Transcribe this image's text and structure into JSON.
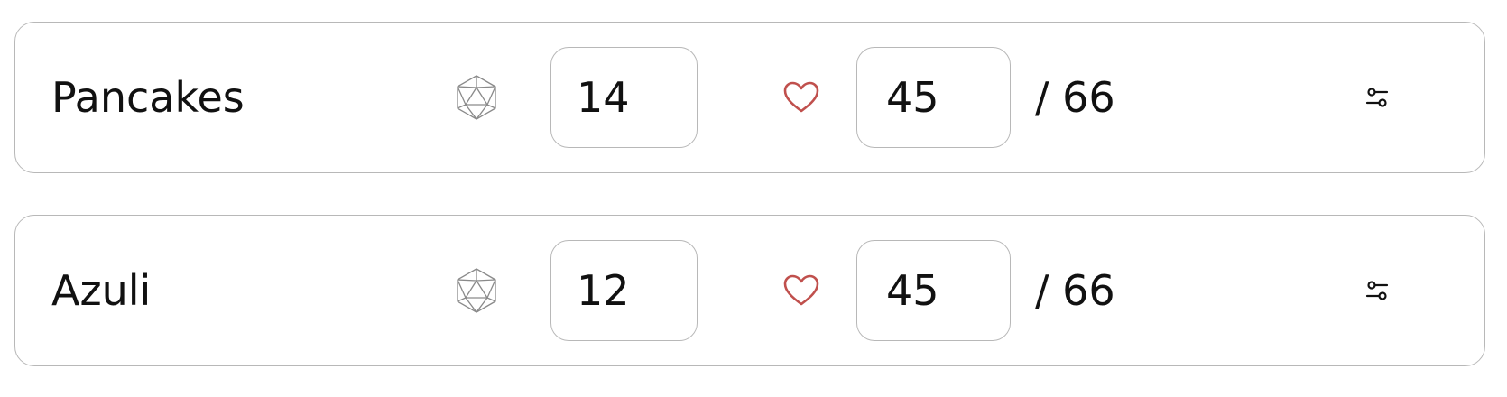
{
  "combatants": [
    {
      "name": "Pancakes",
      "initiative": "14",
      "hp": "45",
      "max_hp": "/ 66",
      "icons": {
        "initiative": "d20-die-icon",
        "hp": "heart-icon",
        "settings": "sliders-icon"
      }
    },
    {
      "name": "Azuli",
      "initiative": "12",
      "hp": "45",
      "max_hp": "/ 66",
      "icons": {
        "initiative": "d20-die-icon",
        "hp": "heart-icon",
        "settings": "sliders-icon"
      }
    }
  ],
  "colors": {
    "border": "#b8b8b8",
    "text": "#111111",
    "heart": "#c0504d",
    "die": "#8a8a8a"
  }
}
